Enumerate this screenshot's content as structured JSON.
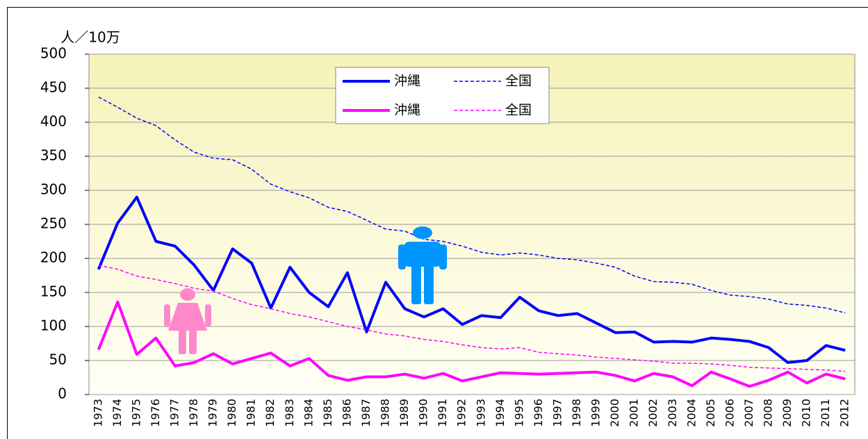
{
  "chart_data": {
    "type": "line",
    "y_label": "人／10万",
    "categories": [
      "1973",
      "1974",
      "1975",
      "1976",
      "1977",
      "1978",
      "1979",
      "1980",
      "1981",
      "1982",
      "1983",
      "1984",
      "1985",
      "1986",
      "1987",
      "1988",
      "1989",
      "1990",
      "1991",
      "1992",
      "1993",
      "1994",
      "1995",
      "1996",
      "1997",
      "1998",
      "1999",
      "2000",
      "2001",
      "2002",
      "2003",
      "2004",
      "2005",
      "2006",
      "2007",
      "2008",
      "2009",
      "2010",
      "2011",
      "2012"
    ],
    "series": [
      {
        "name": "沖縄",
        "color": "#0000ff",
        "style": "solid",
        "values": [
          184,
          252,
          290,
          225,
          218,
          190,
          153,
          214,
          193,
          127,
          187,
          150,
          129,
          179,
          92,
          165,
          126,
          114,
          126,
          103,
          116,
          113,
          143,
          123,
          116,
          119,
          105,
          91,
          92,
          77,
          78,
          77,
          83,
          81,
          78,
          69,
          47,
          50,
          72,
          65
        ]
      },
      {
        "name": "全国",
        "color": "#0000ff",
        "style": "dashed",
        "values": [
          437,
          422,
          406,
          395,
          374,
          356,
          347,
          345,
          331,
          309,
          298,
          289,
          275,
          269,
          256,
          243,
          240,
          228,
          225,
          218,
          209,
          205,
          208,
          205,
          200,
          198,
          193,
          187,
          174,
          166,
          165,
          162,
          153,
          146,
          144,
          140,
          133,
          131,
          127,
          120
        ]
      },
      {
        "name": "沖縄",
        "color": "#ff00ff",
        "style": "solid",
        "values": [
          66,
          136,
          59,
          83,
          42,
          47,
          60,
          45,
          53,
          61,
          42,
          53,
          28,
          21,
          26,
          26,
          30,
          24,
          31,
          20,
          26,
          32,
          31,
          30,
          31,
          32,
          33,
          28,
          20,
          31,
          26,
          13,
          33,
          23,
          12,
          21,
          33,
          17,
          30,
          23
        ]
      },
      {
        "name": "全国",
        "color": "#ff00ff",
        "style": "dashed",
        "values": [
          190,
          184,
          174,
          169,
          163,
          156,
          152,
          141,
          132,
          126,
          119,
          114,
          107,
          100,
          95,
          89,
          86,
          81,
          78,
          73,
          69,
          67,
          69,
          62,
          60,
          58,
          55,
          53,
          51,
          49,
          46,
          46,
          45,
          43,
          40,
          39,
          38,
          37,
          36,
          34
        ]
      }
    ],
    "ylim": [
      0,
      500
    ],
    "yticks": [
      0,
      50,
      100,
      150,
      200,
      250,
      300,
      350,
      400,
      450,
      500
    ],
    "grid": true
  }
}
